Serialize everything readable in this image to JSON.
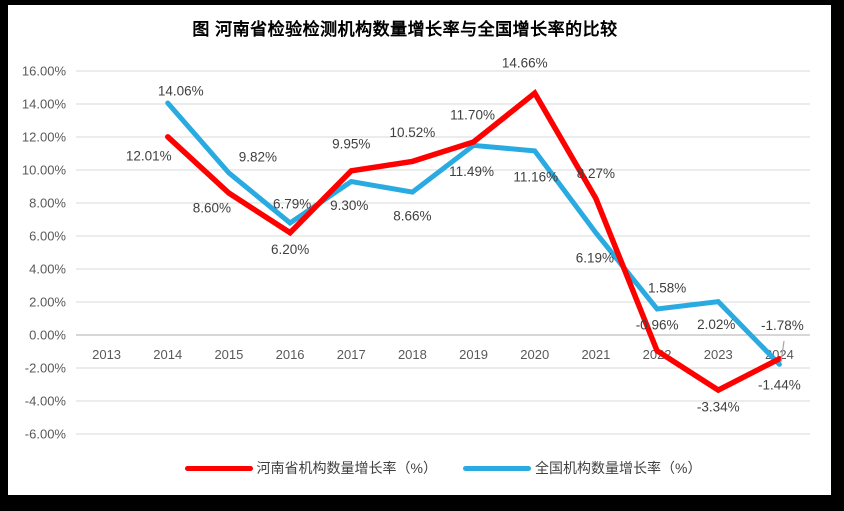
{
  "title": "图  河南省检验检测机构数量增长率与全国增长率的比较",
  "colors": {
    "henan_line": "#FF0000",
    "national_line": "#29ABE2",
    "gridline": "#D9D9D9",
    "zero_axis_line": "#BFBFBF",
    "axis_text": "#595959",
    "data_label_text": "#404040",
    "leader_line": "#A6A6A6",
    "frame_border": "#000000",
    "background": "#FFFFFF"
  },
  "legend": [
    {
      "id": "henan",
      "label": "河南省机构数量增长率（%）"
    },
    {
      "id": "national",
      "label": "全国机构数量增长率（%）"
    }
  ],
  "chart_data": {
    "type": "line",
    "title": "图  河南省检验检测机构数量增长率与全国增长率的比较",
    "categories": [
      "2013",
      "2014",
      "2015",
      "2016",
      "2017",
      "2018",
      "2019",
      "2020",
      "2021",
      "2022",
      "2023",
      "2024"
    ],
    "series": [
      {
        "id": "henan",
        "name": "河南省机构数量增长率（%）",
        "color": "#FF0000",
        "values": [
          null,
          12.01,
          8.6,
          6.2,
          9.95,
          10.52,
          11.7,
          14.66,
          8.27,
          -0.96,
          -3.34,
          -1.44
        ]
      },
      {
        "id": "national",
        "name": "全国机构数量增长率（%）",
        "color": "#29ABE2",
        "values": [
          null,
          14.06,
          9.82,
          6.79,
          9.3,
          8.66,
          11.49,
          11.16,
          6.19,
          1.58,
          2.02,
          -1.78
        ]
      }
    ],
    "y_axis": {
      "min": -6,
      "max": 16,
      "step": 2,
      "tick_labels": [
        "16.00%",
        "14.00%",
        "12.00%",
        "10.00%",
        "8.00%",
        "6.00%",
        "4.00%",
        "2.00%",
        "0.00%",
        "-2.00%",
        "-4.00%",
        "-6.00%"
      ]
    },
    "x_axis": {
      "tick_labels": [
        "2013",
        "2014",
        "2015",
        "2016",
        "2017",
        "2018",
        "2019",
        "2020",
        "2021",
        "2022",
        "2023",
        "2024"
      ]
    },
    "grid": true,
    "data_labels": true,
    "data_label_format": "0.00%",
    "legend_position": "bottom"
  }
}
